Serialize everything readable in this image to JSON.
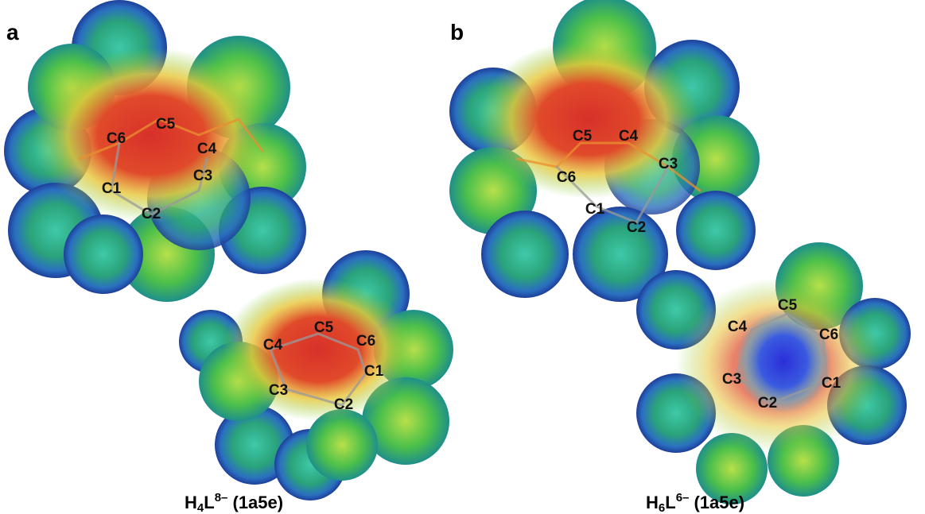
{
  "panels": [
    {
      "label": "a",
      "molecules": [
        {
          "atoms": [
            "C1",
            "C2",
            "C3",
            "C4",
            "C5",
            "C6"
          ]
        },
        {
          "atoms": [
            "C1",
            "C2",
            "C3",
            "C4",
            "C5",
            "C6"
          ]
        }
      ],
      "caption": {
        "base": "H",
        "sub": "4",
        "base2": "L",
        "sup": "8–",
        "rest": " (1a5e)"
      }
    },
    {
      "label": "b",
      "molecules": [
        {
          "atoms": [
            "C1",
            "C2",
            "C3",
            "C4",
            "C5",
            "C6"
          ]
        },
        {
          "atoms": [
            "C1",
            "C2",
            "C3",
            "C4",
            "C5",
            "C6"
          ]
        }
      ],
      "caption": {
        "base": "H",
        "sub": "6",
        "base2": "L",
        "sup": "6–",
        "rest": " (1a5e)"
      }
    }
  ]
}
